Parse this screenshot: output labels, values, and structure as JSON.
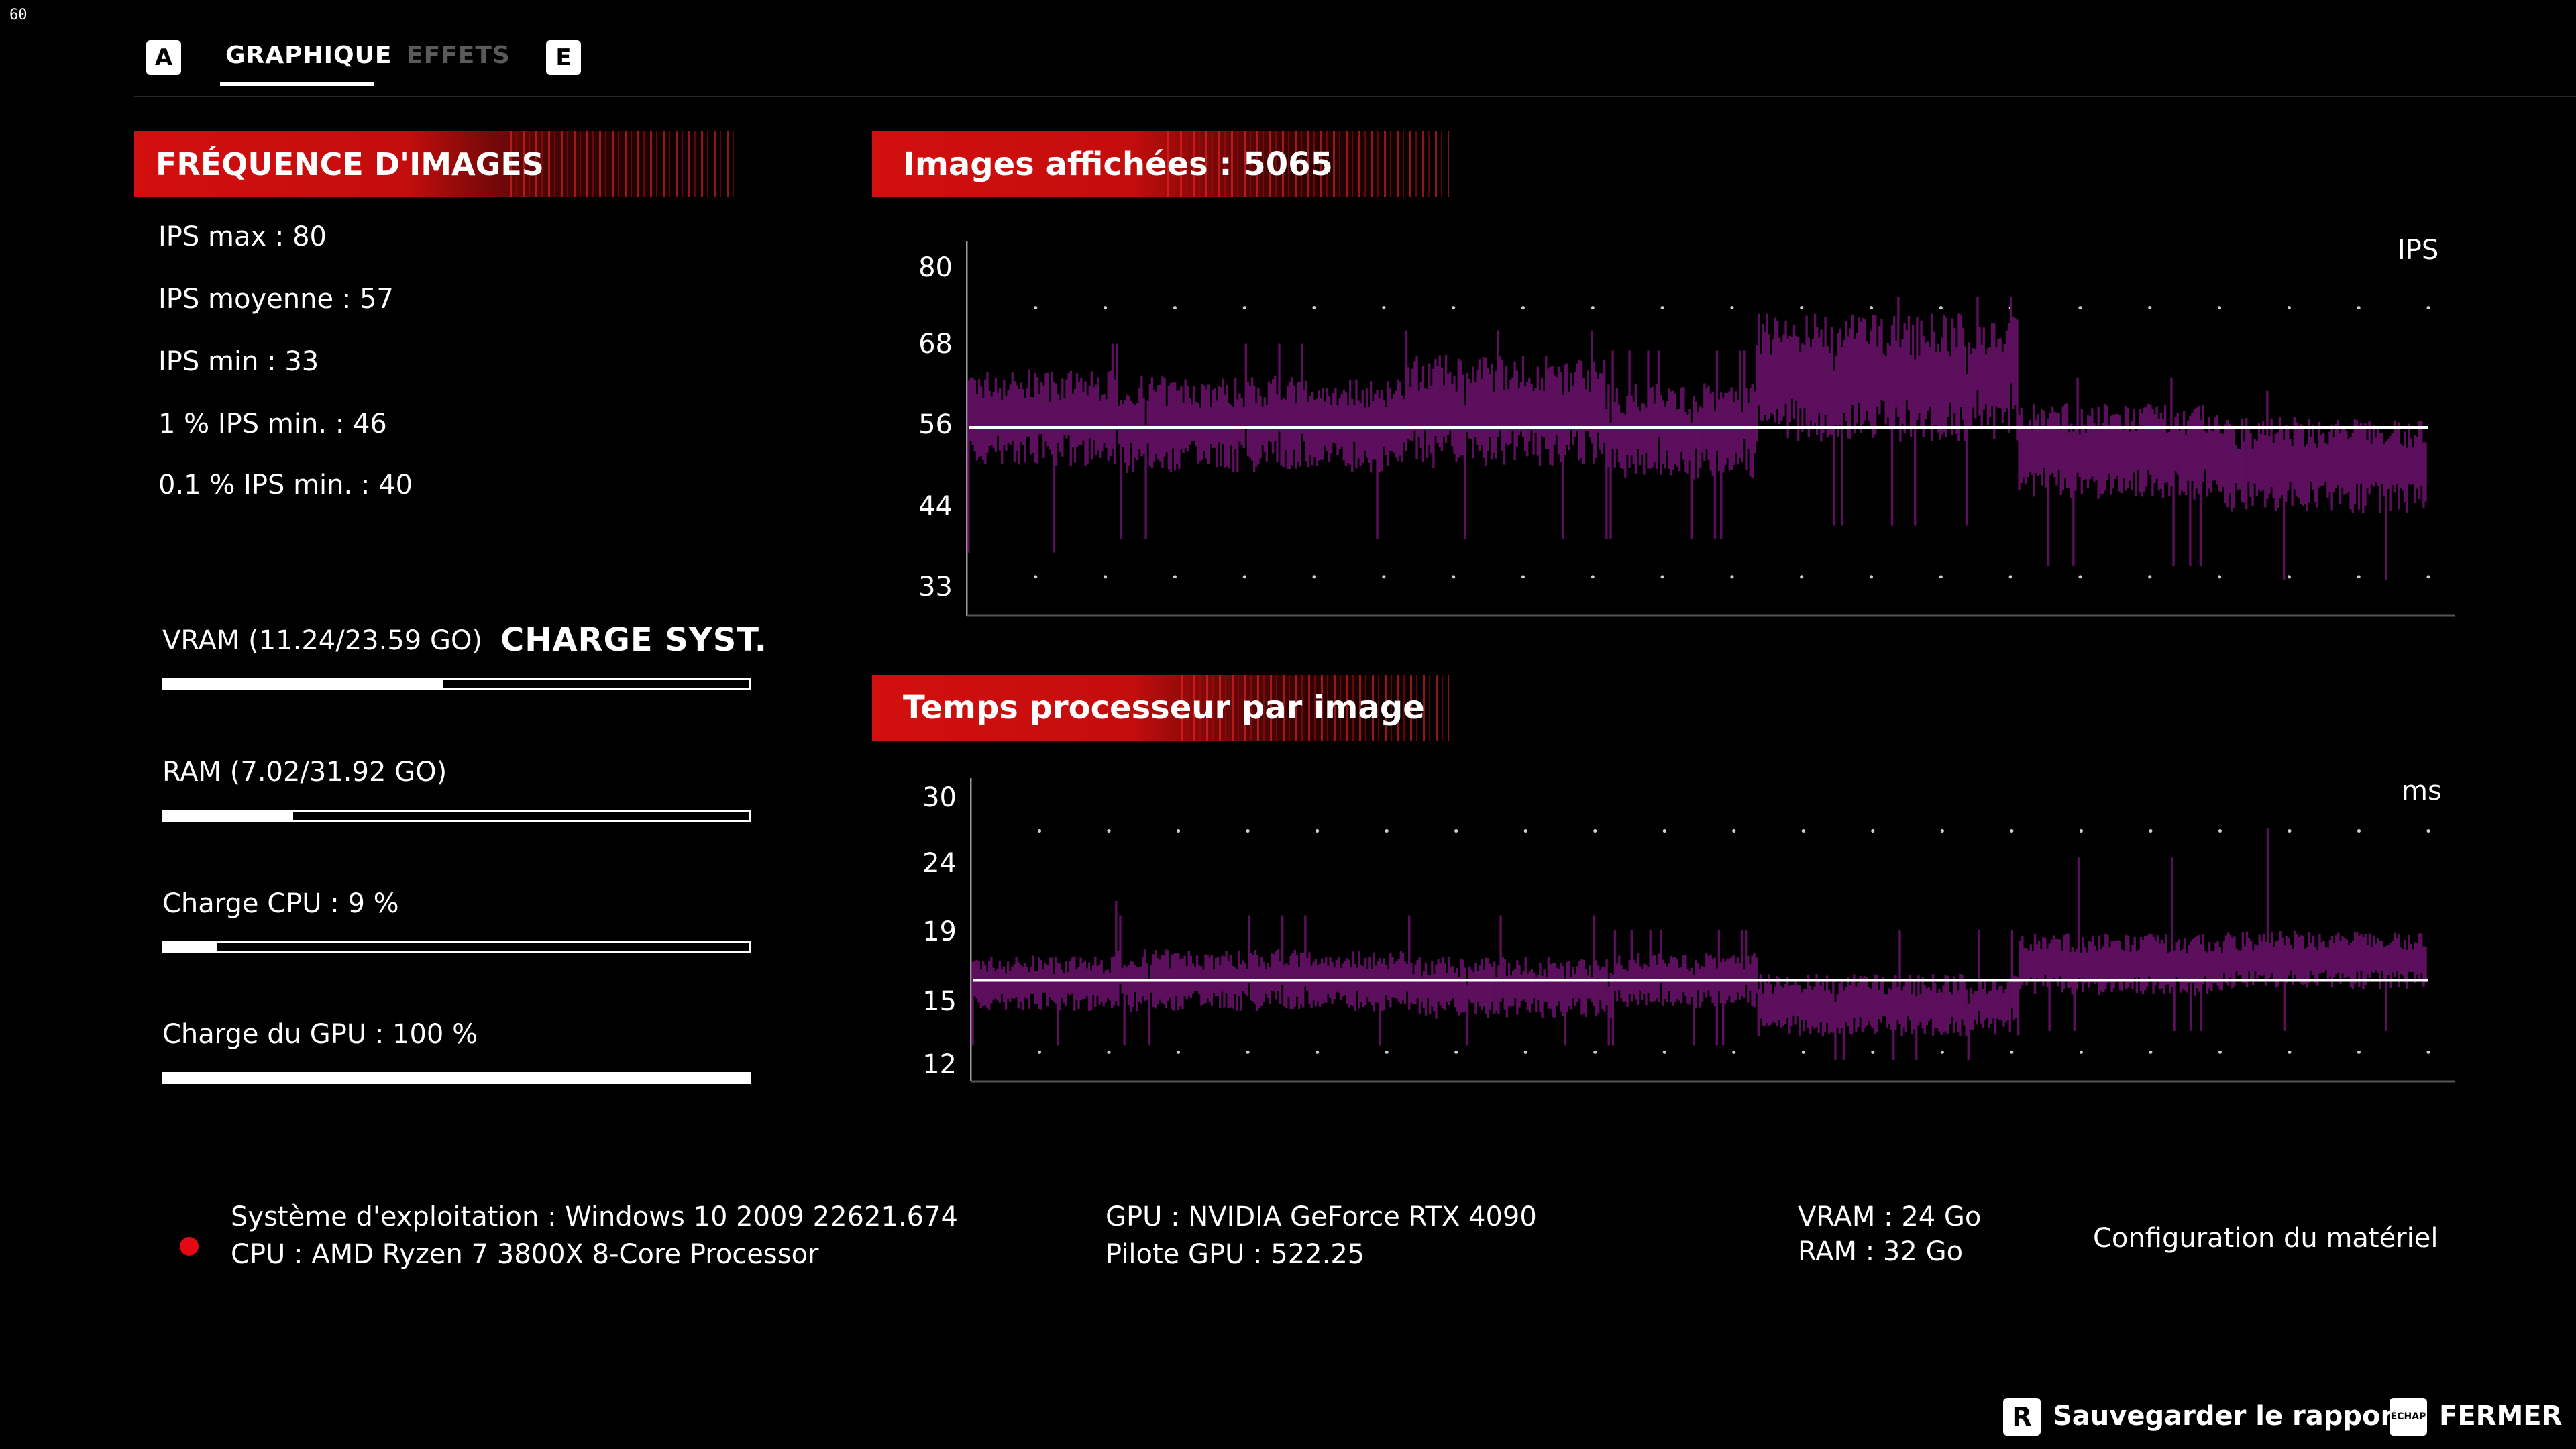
{
  "overlay": {
    "fps_counter": "60"
  },
  "nav": {
    "left_key": "A",
    "tabs": [
      {
        "label": "GRAPHIQUE",
        "active": true
      },
      {
        "label": "EFFETS",
        "active": false
      }
    ],
    "right_key": "E"
  },
  "frame_rate": {
    "title": "FRÉQUENCE D'IMAGES",
    "stats": [
      "IPS max : 80",
      "IPS moyenne : 57",
      "IPS min : 33",
      "1 % IPS min. : 46",
      "0.1 % IPS min. : 40"
    ]
  },
  "system_load": {
    "title": "CHARGE SYST.",
    "bars": [
      {
        "label": "VRAM (11.24/23.59 GO)",
        "fraction": 0.477
      },
      {
        "label": "RAM (7.02/31.92 GO)",
        "fraction": 0.22
      },
      {
        "label": "Charge CPU : 9 %",
        "fraction": 0.09
      },
      {
        "label": "Charge du GPU : 100 %",
        "fraction": 1.0
      }
    ]
  },
  "chart_data": [
    {
      "type": "bar",
      "title": "Images affichées : 5065",
      "unit": "IPS",
      "y_ticks": [
        80,
        68,
        56,
        44,
        33
      ],
      "ylim": [
        33,
        80
      ],
      "average": 56.6,
      "frame_count": 5065,
      "series_color": "#5c0f5c",
      "average_line_color": "#ffffff",
      "segments": [
        {
          "start": 0.0,
          "end": 0.1,
          "center": 58,
          "spread": 6,
          "spike_low": 38,
          "spike_high": 69
        },
        {
          "start": 0.1,
          "end": 0.3,
          "center": 57,
          "spread": 6,
          "spike_low": 40,
          "spike_high": 69
        },
        {
          "start": 0.3,
          "end": 0.44,
          "center": 59,
          "spread": 7,
          "spike_low": 40,
          "spike_high": 71
        },
        {
          "start": 0.44,
          "end": 0.54,
          "center": 56,
          "spread": 6,
          "spike_low": 40,
          "spike_high": 68
        },
        {
          "start": 0.54,
          "end": 0.72,
          "center": 64,
          "spread": 8,
          "spike_low": 42,
          "spike_high": 76
        },
        {
          "start": 0.72,
          "end": 0.86,
          "center": 53,
          "spread": 6,
          "spike_low": 36,
          "spike_high": 64
        },
        {
          "start": 0.86,
          "end": 1.0,
          "center": 51,
          "spread": 6,
          "spike_low": 34,
          "spike_high": 62
        }
      ]
    },
    {
      "type": "bar",
      "title": "Temps processeur par image",
      "unit": "ms",
      "y_ticks": [
        30,
        24,
        19,
        15,
        12
      ],
      "ylim": [
        12,
        30
      ],
      "average": 17.5,
      "series_color": "#5c0f5c",
      "average_line_color": "#ffffff",
      "segments": [
        {
          "start": 0.0,
          "end": 0.1,
          "center": 17.3,
          "spread": 1.6,
          "spike_low": 13,
          "spike_high": 23
        },
        {
          "start": 0.1,
          "end": 0.3,
          "center": 17.5,
          "spread": 1.8,
          "spike_low": 13,
          "spike_high": 22
        },
        {
          "start": 0.3,
          "end": 0.44,
          "center": 17.0,
          "spread": 1.8,
          "spike_low": 13,
          "spike_high": 22
        },
        {
          "start": 0.44,
          "end": 0.54,
          "center": 17.5,
          "spread": 1.6,
          "spike_low": 13,
          "spike_high": 21
        },
        {
          "start": 0.54,
          "end": 0.72,
          "center": 15.8,
          "spread": 1.8,
          "spike_low": 12,
          "spike_high": 21
        },
        {
          "start": 0.72,
          "end": 0.86,
          "center": 18.6,
          "spread": 1.8,
          "spike_low": 14,
          "spike_high": 26
        },
        {
          "start": 0.86,
          "end": 1.0,
          "center": 18.9,
          "spread": 1.7,
          "spike_low": 14,
          "spike_high": 28
        }
      ]
    }
  ],
  "hardware": {
    "status_color": "#e50914",
    "os": "Système d'exploitation : Windows 10 2009 22621.674",
    "cpu": "CPU : AMD Ryzen 7 3800X 8-Core Processor",
    "gpu": "GPU : NVIDIA GeForce RTX 4090",
    "gpu_driver": "Pilote GPU : 522.25",
    "vram": "VRAM : 24 Go",
    "ram": "RAM : 32 Go",
    "config_link": "Configuration du matériel"
  },
  "footer": {
    "save_key": "R",
    "save_label": "Sauvegarder le rapport",
    "close_key": "ÉCHAP",
    "close_label": "FERMER"
  }
}
